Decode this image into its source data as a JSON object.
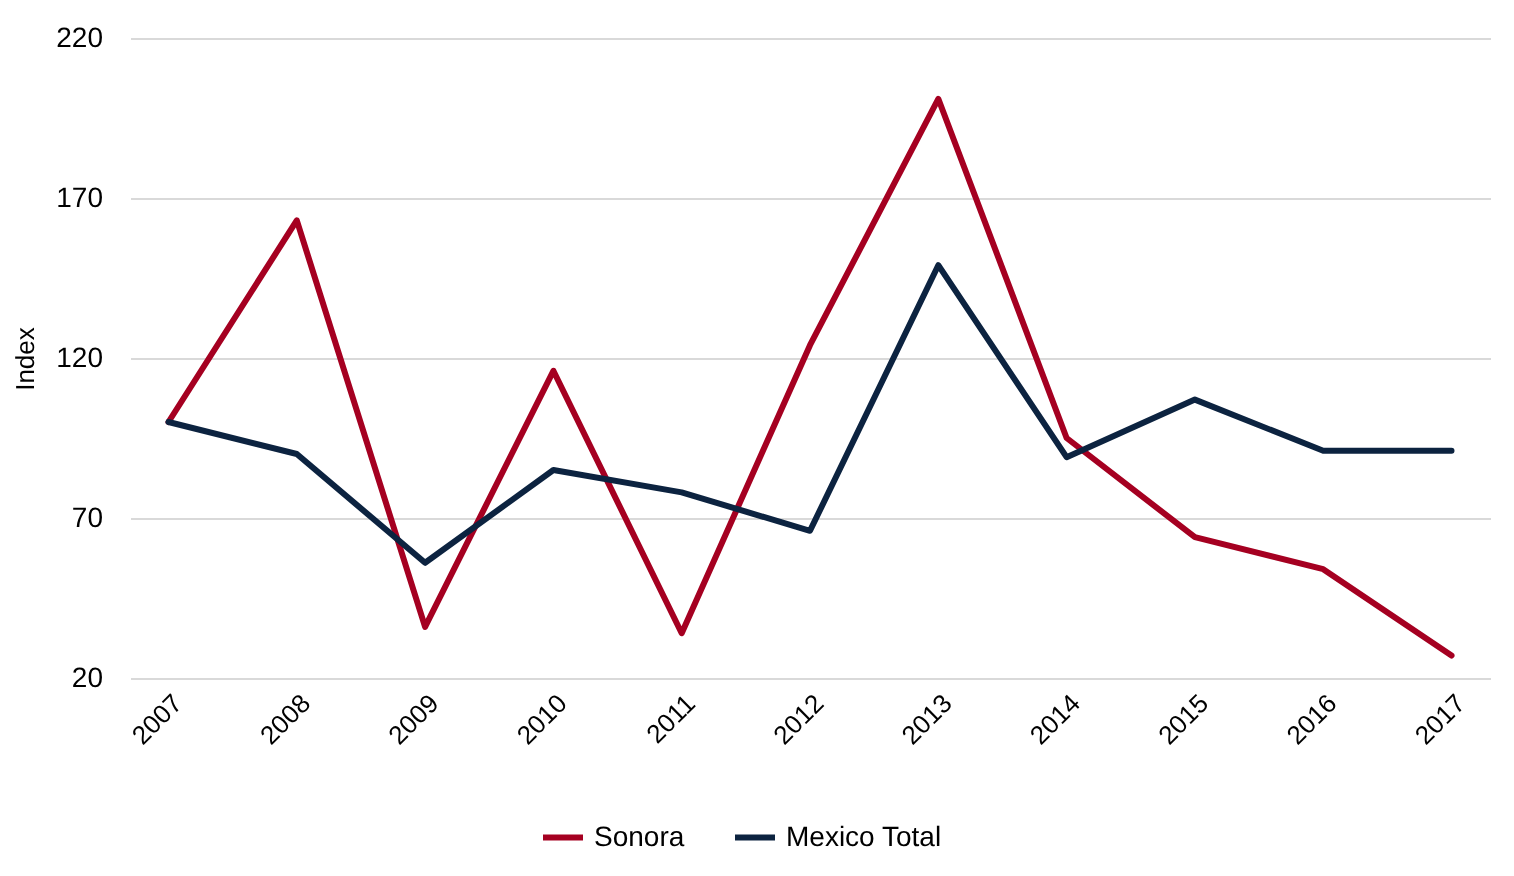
{
  "chart_data": {
    "type": "line",
    "ylabel": "Index",
    "categories": [
      "2007",
      "2008",
      "2009",
      "2010",
      "2011",
      "2012",
      "2013",
      "2014",
      "2015",
      "2016",
      "2017"
    ],
    "series": [
      {
        "name": "Sonora",
        "color": "#a50021",
        "values": [
          100,
          163,
          36,
          116,
          34,
          124,
          201,
          95,
          64,
          54,
          27
        ]
      },
      {
        "name": "Mexico Total",
        "color": "#0c2340",
        "values": [
          100,
          90,
          56,
          85,
          78,
          66,
          149,
          89,
          107,
          91,
          91
        ]
      }
    ],
    "ylim": [
      20,
      220
    ],
    "yticks": [
      20,
      70,
      120,
      170,
      220
    ],
    "grid": "y",
    "legend": "bottom",
    "marker": "none",
    "line_style": "solid"
  }
}
